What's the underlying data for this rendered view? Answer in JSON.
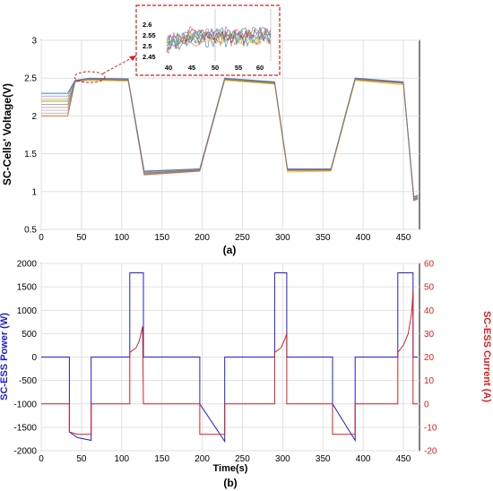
{
  "chart_data": [
    {
      "type": "line",
      "panel_label": "(a)",
      "ylabel": "SC-Cells' Voltage(V)",
      "xlim": [
        0,
        470
      ],
      "ylim": [
        0.5,
        3
      ],
      "xticks": [
        0,
        50,
        100,
        150,
        200,
        250,
        300,
        350,
        400,
        450
      ],
      "yticks": [
        0.5,
        1,
        1.5,
        2,
        2.5,
        3
      ],
      "grid": true,
      "series": [
        {
          "values": [
            [
              0,
              2.3
            ],
            [
              33,
              2.3
            ],
            [
              42,
              2.47
            ],
            [
              60,
              2.5
            ],
            [
              108,
              2.49
            ],
            [
              128,
              1.27
            ],
            [
              197,
              1.3
            ],
            [
              228,
              2.5
            ],
            [
              290,
              2.45
            ],
            [
              306,
              1.3
            ],
            [
              360,
              1.3
            ],
            [
              390,
              2.5
            ],
            [
              450,
              2.45
            ],
            [
              463,
              0.93
            ],
            [
              468,
              0.95
            ]
          ]
        },
        {
          "values": [
            [
              0,
              2.0
            ],
            [
              33,
              2.0
            ],
            [
              42,
              2.45
            ],
            [
              60,
              2.48
            ],
            [
              108,
              2.47
            ],
            [
              128,
              1.22
            ],
            [
              197,
              1.27
            ],
            [
              228,
              2.48
            ],
            [
              290,
              2.43
            ],
            [
              306,
              1.28
            ],
            [
              360,
              1.28
            ],
            [
              390,
              2.48
            ],
            [
              450,
              2.43
            ],
            [
              463,
              0.88
            ],
            [
              468,
              0.9
            ]
          ]
        },
        {
          "values": [
            [
              0,
              2.2
            ],
            [
              33,
              2.2
            ],
            [
              42,
              2.46
            ],
            [
              60,
              2.47
            ],
            [
              108,
              2.46
            ],
            [
              128,
              1.24
            ],
            [
              197,
              1.28
            ],
            [
              228,
              2.47
            ],
            [
              290,
              2.42
            ],
            [
              306,
              1.26
            ],
            [
              360,
              1.27
            ],
            [
              390,
              2.47
            ],
            [
              450,
              2.41
            ],
            [
              463,
              0.9
            ],
            [
              468,
              0.92
            ]
          ]
        }
      ],
      "inset": {
        "xticks": [
          40,
          45,
          50,
          55,
          60
        ],
        "yticks": [
          "2.6",
          "2.55",
          "2.5",
          "2.45"
        ]
      }
    },
    {
      "type": "line",
      "panel_label": "(b)",
      "xlabel": "Time(s)",
      "ylabel_left": "SC-ESS Power (W)",
      "ylabel_right": "SC-ESS Current (A)",
      "xlim": [
        0,
        470
      ],
      "ylim_left": [
        -2000,
        2000
      ],
      "ylim_right": [
        -20,
        60
      ],
      "xticks": [
        0,
        50,
        100,
        150,
        200,
        250,
        300,
        350,
        400,
        450
      ],
      "yticks_left": [
        -2000,
        -1500,
        -1000,
        -500,
        0,
        500,
        1000,
        1500,
        2000
      ],
      "yticks_right": [
        -20,
        -10,
        0,
        10,
        20,
        30,
        40,
        50,
        60
      ],
      "grid": true,
      "colors": {
        "power": "#1f1fcc",
        "current": "#d42020"
      },
      "series": [
        {
          "axis": "left",
          "values": [
            [
              0,
              0
            ],
            [
              35,
              0
            ],
            [
              35,
              -1600
            ],
            [
              45,
              -1720
            ],
            [
              62,
              -1780
            ],
            [
              62,
              0
            ],
            [
              110,
              0
            ],
            [
              110,
              1800
            ],
            [
              127,
              1800
            ],
            [
              127,
              0
            ],
            [
              197,
              0
            ],
            [
              197,
              -1000
            ],
            [
              228,
              -1800
            ],
            [
              228,
              0
            ],
            [
              290,
              0
            ],
            [
              290,
              1800
            ],
            [
              305,
              1800
            ],
            [
              305,
              0
            ],
            [
              362,
              0
            ],
            [
              362,
              -1000
            ],
            [
              390,
              -1780
            ],
            [
              390,
              0
            ],
            [
              443,
              0
            ],
            [
              443,
              1800
            ],
            [
              462,
              1800
            ],
            [
              462,
              0
            ],
            [
              468,
              0
            ]
          ]
        },
        {
          "axis": "right",
          "values": [
            [
              0,
              0
            ],
            [
              35,
              0
            ],
            [
              35,
              -12
            ],
            [
              45,
              -13
            ],
            [
              62,
              -13
            ],
            [
              62,
              0
            ],
            [
              110,
              0
            ],
            [
              110,
              22
            ],
            [
              118,
              24
            ],
            [
              122,
              27
            ],
            [
              126,
              33
            ],
            [
              127,
              0
            ],
            [
              197,
              0
            ],
            [
              197,
              -13
            ],
            [
              228,
              -13
            ],
            [
              228,
              0
            ],
            [
              290,
              0
            ],
            [
              290,
              22
            ],
            [
              298,
              24
            ],
            [
              303,
              28
            ],
            [
              305,
              30
            ],
            [
              305,
              0
            ],
            [
              362,
              0
            ],
            [
              362,
              -13
            ],
            [
              390,
              -13
            ],
            [
              390,
              0
            ],
            [
              443,
              0
            ],
            [
              443,
              22
            ],
            [
              450,
              25
            ],
            [
              456,
              30
            ],
            [
              460,
              38
            ],
            [
              462,
              48
            ],
            [
              462,
              0
            ],
            [
              468,
              0
            ]
          ]
        }
      ]
    }
  ]
}
